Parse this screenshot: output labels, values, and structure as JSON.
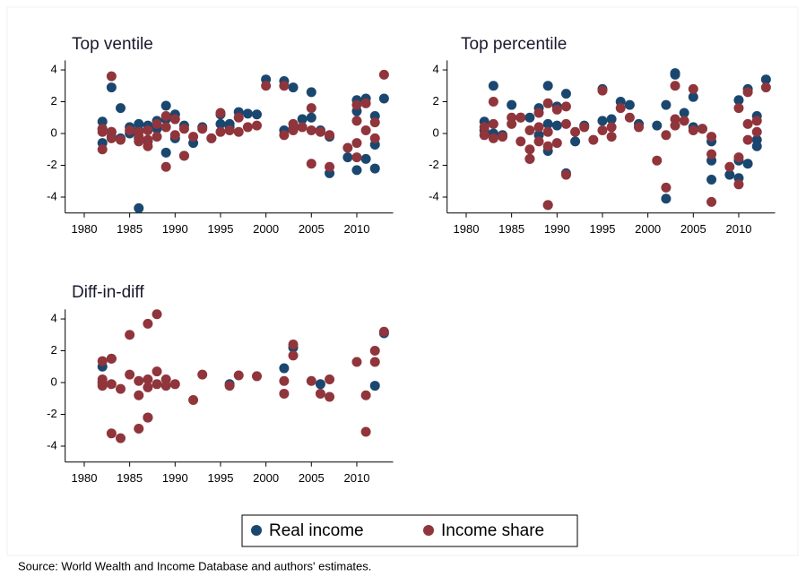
{
  "chart_data": [
    {
      "type": "scatter",
      "title": "Top ventile",
      "xlim": [
        1978,
        2014
      ],
      "xticks": [
        1980,
        1985,
        1990,
        1995,
        2000,
        2005,
        2010
      ],
      "ylim": [
        -5,
        4.6
      ],
      "yticks": [
        -4,
        -2,
        0,
        2,
        4
      ],
      "series": [
        {
          "name": "Real income",
          "color": "#1a476f",
          "x": [
            1982,
            1982,
            1982,
            1983,
            1983,
            1983,
            1984,
            1984,
            1985,
            1985,
            1986,
            1986,
            1986,
            1986,
            1987,
            1987,
            1988,
            1988,
            1989,
            1989,
            1989,
            1990,
            1990,
            1991,
            1991,
            1992,
            1993,
            1994,
            1995,
            1995,
            1996,
            1996,
            1997,
            1998,
            1999,
            2000,
            2002,
            2002,
            2003,
            2003,
            2004,
            2005,
            2005,
            2006,
            2007,
            2007,
            2009,
            2010,
            2010,
            2010,
            2011,
            2011,
            2012,
            2012,
            2012,
            2013
          ],
          "values": [
            0.75,
            -0.6,
            0.3,
            2.9,
            0.1,
            -0.2,
            1.6,
            -0.3,
            0.4,
            0,
            -4.7,
            0.6,
            0.2,
            -0.3,
            0.5,
            -0.5,
            0.8,
            0.3,
            1.75,
            -1.2,
            0.9,
            1.2,
            -0.3,
            0.5,
            -1.4,
            -0.6,
            0.4,
            -0.3,
            0.6,
            1.2,
            0.6,
            0.4,
            1.35,
            1.25,
            1.2,
            3.4,
            3.3,
            0.2,
            2.9,
            0.3,
            0.9,
            2.6,
            1.0,
            0.2,
            -2.5,
            -0.2,
            -1.5,
            2.1,
            -2.3,
            1.4,
            2.2,
            -1.6,
            1.1,
            -2.2,
            -0.7,
            2.2
          ]
        },
        {
          "name": "Income share",
          "color": "#90353b",
          "x": [
            1982,
            1982,
            1982,
            1983,
            1983,
            1983,
            1984,
            1985,
            1986,
            1986,
            1986,
            1987,
            1987,
            1987,
            1988,
            1988,
            1989,
            1989,
            1989,
            1990,
            1990,
            1991,
            1991,
            1992,
            1993,
            1994,
            1995,
            1995,
            1996,
            1997,
            1997,
            1998,
            1999,
            2000,
            2002,
            2002,
            2003,
            2003,
            2004,
            2005,
            2005,
            2005,
            2006,
            2007,
            2007,
            2009,
            2010,
            2010,
            2010,
            2010,
            2011,
            2011,
            2012,
            2012,
            2013
          ],
          "values": [
            0.3,
            -1.0,
            0.1,
            3.6,
            0.1,
            -0.3,
            -0.4,
            0.2,
            0.1,
            -0.2,
            -0.5,
            -0.8,
            0.2,
            -0.4,
            0.6,
            -0.2,
            -2.1,
            1.1,
            0.4,
            0.9,
            -0.1,
            -1.4,
            0.3,
            -0.2,
            0.3,
            -0.3,
            1.3,
            0.1,
            0.2,
            1.0,
            0.1,
            0.4,
            0.5,
            3.0,
            3.0,
            -0.1,
            0.6,
            0.2,
            0.4,
            1.6,
            -1.9,
            0.2,
            0.1,
            -2.1,
            -0.1,
            -0.9,
            1.8,
            -1.5,
            0.8,
            -0.6,
            1.9,
            0.2,
            0.7,
            -0.3,
            3.7
          ]
        }
      ]
    },
    {
      "type": "scatter",
      "title": "Top percentile",
      "xlim": [
        1978,
        2014
      ],
      "xticks": [
        1980,
        1985,
        1990,
        1995,
        2000,
        2005,
        2010
      ],
      "ylim": [
        -5,
        4.6
      ],
      "yticks": [
        -4,
        -2,
        0,
        2,
        4
      ],
      "series": [
        {
          "name": "Real income",
          "color": "#1a476f",
          "x": [
            1982,
            1982,
            1983,
            1983,
            1984,
            1985,
            1986,
            1987,
            1987,
            1988,
            1988,
            1989,
            1989,
            1989,
            1989,
            1990,
            1990,
            1991,
            1991,
            1992,
            1993,
            1995,
            1995,
            1996,
            1997,
            1998,
            1999,
            2001,
            2002,
            2002,
            2003,
            2003,
            2004,
            2005,
            2005,
            2006,
            2007,
            2007,
            2007,
            2009,
            2010,
            2010,
            2010,
            2011,
            2011,
            2012,
            2012,
            2012,
            2013
          ],
          "values": [
            0.75,
            0.2,
            3.0,
            0,
            -0.1,
            1.8,
            1.0,
            1.0,
            -1.6,
            1.6,
            -0.1,
            3.0,
            -4.5,
            0.6,
            -1.1,
            1.7,
            0.5,
            2.5,
            -2.5,
            -0.5,
            0.5,
            2.8,
            0.8,
            0.9,
            2.0,
            1.8,
            0.6,
            0.5,
            1.8,
            -4.1,
            3.8,
            3.7,
            1.3,
            2.3,
            0.4,
            0.3,
            -0.5,
            -2.9,
            -1.7,
            -2.6,
            2.1,
            -2.8,
            -1.7,
            2.8,
            -1.9,
            1.1,
            -0.8,
            -0.4,
            3.4
          ]
        },
        {
          "name": "Income share",
          "color": "#90353b",
          "x": [
            1982,
            1982,
            1983,
            1983,
            1983,
            1984,
            1985,
            1985,
            1986,
            1986,
            1987,
            1987,
            1987,
            1988,
            1988,
            1988,
            1989,
            1989,
            1989,
            1989,
            1990,
            1990,
            1991,
            1991,
            1991,
            1992,
            1993,
            1994,
            1995,
            1995,
            1996,
            1996,
            1997,
            1998,
            1999,
            2001,
            2002,
            2002,
            2003,
            2003,
            2003,
            2004,
            2005,
            2005,
            2006,
            2007,
            2007,
            2007,
            2009,
            2010,
            2010,
            2010,
            2011,
            2011,
            2011,
            2012,
            2012,
            2013
          ],
          "values": [
            0.4,
            -0.1,
            2.0,
            0.6,
            -0.3,
            -0.2,
            0.6,
            1.0,
            -0.5,
            1.0,
            -1.0,
            -1.6,
            0.2,
            1.3,
            0.4,
            -0.5,
            -4.5,
            1.9,
            0.1,
            -0.8,
            1.5,
            -0.6,
            1.7,
            -2.6,
            0.6,
            0.1,
            0.4,
            -0.4,
            2.7,
            0.2,
            -0.2,
            0.4,
            1.6,
            1.0,
            0.4,
            -1.7,
            -3.4,
            -0.1,
            3.0,
            0.9,
            0.5,
            0.8,
            2.8,
            0.2,
            0.3,
            -4.3,
            -1.3,
            -0.2,
            -2.1,
            1.6,
            -1.5,
            -3.2,
            2.6,
            0.6,
            -0.4,
            0.8,
            0.1,
            2.9
          ]
        }
      ]
    },
    {
      "type": "scatter",
      "title": "Diff-in-diff",
      "xlim": [
        1978,
        2014
      ],
      "xticks": [
        1980,
        1985,
        1990,
        1995,
        2000,
        2005,
        2010
      ],
      "ylim": [
        -5,
        4.6
      ],
      "yticks": [
        -4,
        -2,
        0,
        2,
        4
      ],
      "series": [
        {
          "name": "Real income",
          "color": "#1a476f",
          "x": [
            1982,
            1982,
            1983,
            1987,
            1996,
            2002,
            2003,
            2006,
            2012,
            2013
          ],
          "values": [
            1.0,
            0,
            1.5,
            -2.2,
            -0.1,
            0.9,
            2.2,
            -0.1,
            -0.2,
            3.1
          ]
        },
        {
          "name": "Income share",
          "color": "#90353b",
          "x": [
            1982,
            1982,
            1982,
            1982,
            1983,
            1983,
            1983,
            1984,
            1984,
            1985,
            1985,
            1986,
            1986,
            1986,
            1987,
            1987,
            1987,
            1987,
            1988,
            1988,
            1988,
            1989,
            1989,
            1990,
            1992,
            1993,
            1996,
            1997,
            1999,
            2002,
            2002,
            2003,
            2003,
            2005,
            2006,
            2007,
            2007,
            2010,
            2011,
            2011,
            2012,
            2012,
            2013
          ],
          "values": [
            1.35,
            0.2,
            -0.2,
            0,
            -3.2,
            1.5,
            -0.1,
            -3.5,
            -0.4,
            3.0,
            0.5,
            -2.9,
            -0.8,
            0.1,
            3.7,
            -2.2,
            0.2,
            -0.3,
            4.3,
            0.7,
            -0.1,
            0.2,
            -0.2,
            -0.1,
            -1.1,
            0.5,
            -0.2,
            0.45,
            0.4,
            0.1,
            -0.7,
            2.4,
            1.7,
            0.1,
            -0.7,
            0.2,
            -0.9,
            1.3,
            -0.8,
            -3.1,
            2.0,
            1.3,
            3.2
          ]
        }
      ]
    }
  ],
  "note": "Source: World Wealth and Income Database and authors' estimates."
}
